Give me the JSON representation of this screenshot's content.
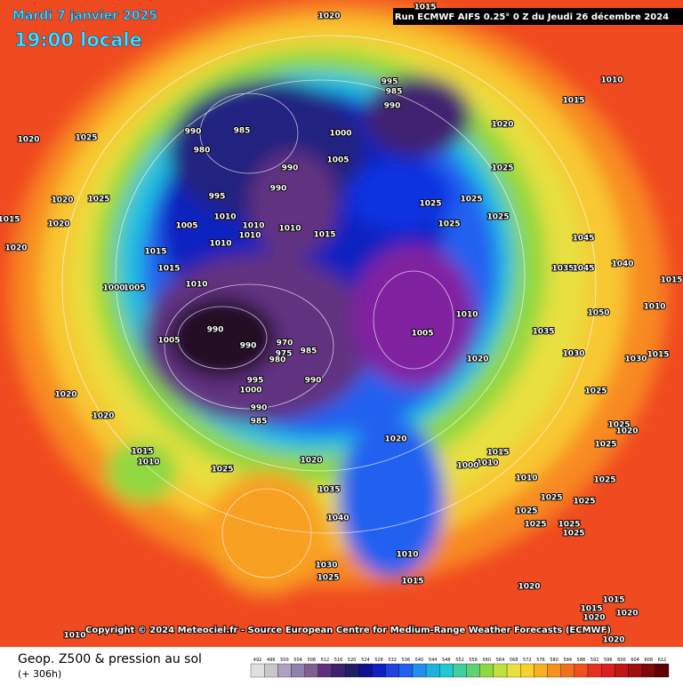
{
  "header": {
    "date": "Mardi 7 janvier 2025",
    "time": "19:00 locale",
    "run": "Run ECMWF AIFS 0.25° 0 Z du Jeudi 26 décembre 2024"
  },
  "copyright": "Copyright © 2024 Meteociel.fr - Source European Centre for Medium-Range Weather Forecasts (ECMWF)",
  "footer": {
    "product": "Geop. Z500 & pression au sol",
    "lead": "(+ 306h)"
  },
  "scale": {
    "values": [
      492,
      496,
      500,
      504,
      508,
      512,
      516,
      520,
      524,
      528,
      532,
      536,
      540,
      544,
      548,
      552,
      556,
      560,
      564,
      568,
      572,
      576,
      580,
      584,
      588,
      592,
      596,
      600,
      604,
      608,
      612
    ],
    "colors": [
      "#e0e0e0",
      "#c8c8c8",
      "#b0a0c0",
      "#9080b0",
      "#806090",
      "#603080",
      "#402070",
      "#202060",
      "#101090",
      "#1020c0",
      "#2040e0",
      "#2060f0",
      "#2090f0",
      "#20b0e0",
      "#20c8d0",
      "#40d0a0",
      "#60d070",
      "#90d840",
      "#c0e040",
      "#e8e040",
      "#f8d030",
      "#f8b020",
      "#f89020",
      "#f07020",
      "#f05020",
      "#e83020",
      "#d82020",
      "#c01818",
      "#a01010",
      "#800808",
      "#600000"
    ]
  },
  "pressure_labels": [
    "1020",
    "1015",
    "1010",
    "1015",
    "1020",
    "1025",
    "990",
    "985",
    "980",
    "995",
    "985",
    "990",
    "1000",
    "1020",
    "1005",
    "990",
    "990",
    "995",
    "1025",
    "1025",
    "1025",
    "1025",
    "1025",
    "1010",
    "1010",
    "1010",
    "1015",
    "1010",
    "1010",
    "1005",
    "1025",
    "1020",
    "1015",
    "1020",
    "1020",
    "1015",
    "1015",
    "1010",
    "1005",
    "1000",
    "1045",
    "1040",
    "1035",
    "1045",
    "1010",
    "1005",
    "1020",
    "990",
    "990",
    "970",
    "975",
    "980",
    "985",
    "1005",
    "995",
    "990",
    "1000",
    "990",
    "985",
    "1020",
    "1020",
    "1020",
    "1015",
    "1010",
    "1025",
    "1020",
    "1015",
    "1010",
    "1000",
    "1010",
    "1035",
    "1040",
    "1030",
    "1025",
    "1010",
    "1015",
    "1025",
    "1025",
    "1025",
    "1025",
    "1025",
    "1025",
    "1020",
    "1030",
    "1015",
    "1025",
    "1020",
    "1025",
    "1025",
    "1015",
    "1015",
    "1020",
    "1020",
    "1020",
    "1010",
    "1050",
    "1035",
    "1030",
    "1025",
    "1015",
    "1010"
  ]
}
